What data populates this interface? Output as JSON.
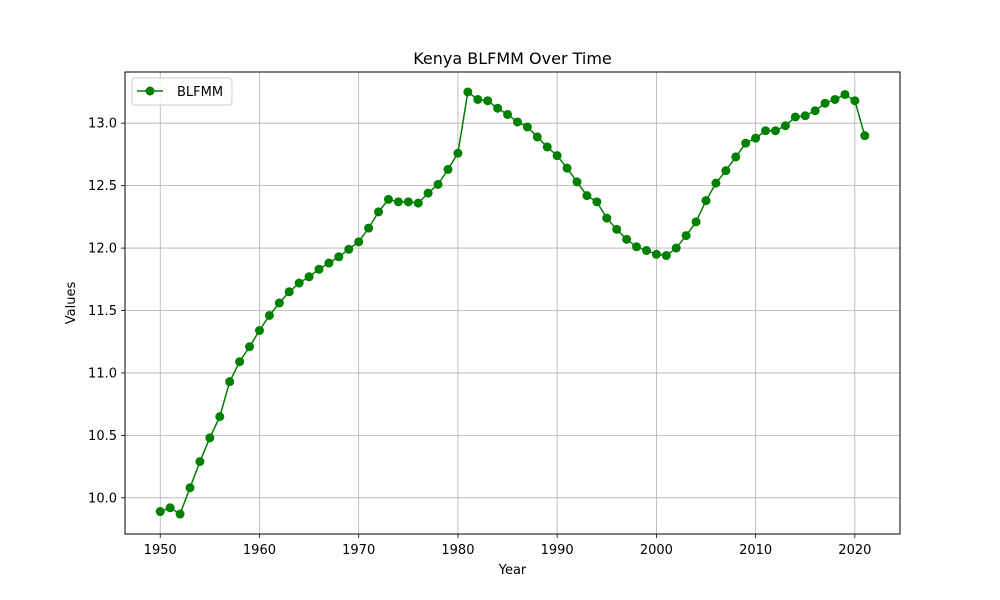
{
  "chart_data": {
    "type": "line",
    "title": "Kenya BLFMM Over Time",
    "xlabel": "Year",
    "ylabel": "Values",
    "xlim": [
      1946.45,
      2024.55
    ],
    "ylim": [
      9.71,
      13.41
    ],
    "xticks": [
      1950,
      1960,
      1970,
      1980,
      1990,
      2000,
      2010,
      2020
    ],
    "yticks": [
      10.0,
      10.5,
      11.0,
      11.5,
      12.0,
      12.5,
      13.0
    ],
    "ytick_labels": [
      "10.0",
      "10.5",
      "11.0",
      "11.5",
      "12.0",
      "12.5",
      "13.0"
    ],
    "grid": true,
    "legend": {
      "position": "top-left"
    },
    "series": [
      {
        "name": "BLFMM",
        "color": "#008000",
        "marker": "circle",
        "x": [
          1950,
          1951,
          1952,
          1953,
          1954,
          1955,
          1956,
          1957,
          1958,
          1959,
          1960,
          1961,
          1962,
          1963,
          1964,
          1965,
          1966,
          1967,
          1968,
          1969,
          1970,
          1971,
          1972,
          1973,
          1974,
          1975,
          1976,
          1977,
          1978,
          1979,
          1980,
          1981,
          1982,
          1983,
          1984,
          1985,
          1986,
          1987,
          1988,
          1989,
          1990,
          1991,
          1992,
          1993,
          1994,
          1995,
          1996,
          1997,
          1998,
          1999,
          2000,
          2001,
          2002,
          2003,
          2004,
          2005,
          2006,
          2007,
          2008,
          2009,
          2010,
          2011,
          2012,
          2013,
          2014,
          2015,
          2016,
          2017,
          2018,
          2019,
          2020,
          2021
        ],
        "values": [
          9.89,
          9.92,
          9.87,
          10.08,
          10.29,
          10.48,
          10.65,
          10.93,
          11.09,
          11.21,
          11.34,
          11.46,
          11.56,
          11.65,
          11.72,
          11.77,
          11.83,
          11.88,
          11.93,
          11.99,
          12.05,
          12.16,
          12.29,
          12.39,
          12.37,
          12.37,
          12.36,
          12.44,
          12.51,
          12.63,
          12.76,
          13.25,
          13.19,
          13.18,
          13.12,
          13.07,
          13.01,
          12.97,
          12.89,
          12.81,
          12.74,
          12.64,
          12.53,
          12.42,
          12.37,
          12.24,
          12.15,
          12.07,
          12.01,
          11.98,
          11.95,
          11.94,
          12.0,
          12.1,
          12.21,
          12.38,
          12.52,
          12.62,
          12.73,
          12.84,
          12.88,
          12.94,
          12.94,
          12.98,
          13.05,
          13.06,
          13.1,
          13.16,
          13.19,
          13.23,
          13.18,
          12.9
        ]
      }
    ]
  }
}
